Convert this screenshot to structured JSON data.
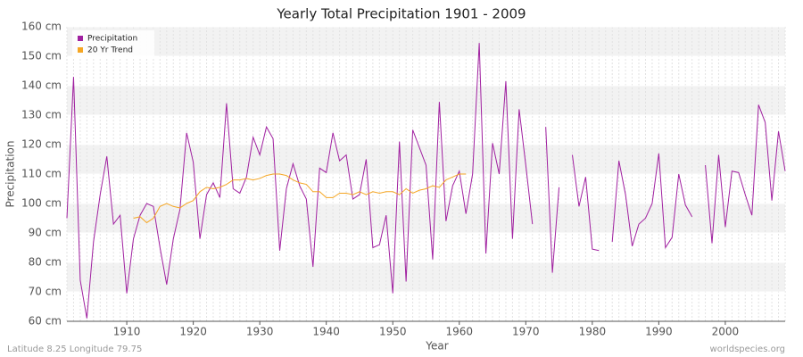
{
  "chart_data": {
    "type": "line",
    "title": "Yearly Total Precipitation 1901 - 2009",
    "x_label": "Year",
    "y_label": "Precipitation",
    "footer_left": "Latitude 8.25 Longitude 79.75",
    "footer_right": "worldspecies.org",
    "x": [
      1901,
      1902,
      1903,
      1904,
      1905,
      1906,
      1907,
      1908,
      1909,
      1910,
      1911,
      1912,
      1913,
      1914,
      1915,
      1916,
      1917,
      1918,
      1919,
      1920,
      1921,
      1922,
      1923,
      1924,
      1925,
      1926,
      1927,
      1928,
      1929,
      1930,
      1931,
      1932,
      1933,
      1934,
      1935,
      1936,
      1937,
      1938,
      1939,
      1940,
      1941,
      1942,
      1943,
      1944,
      1945,
      1946,
      1947,
      1948,
      1949,
      1950,
      1951,
      1952,
      1953,
      1954,
      1955,
      1956,
      1957,
      1958,
      1959,
      1960,
      1961,
      1962,
      1963,
      1964,
      1965,
      1966,
      1967,
      1968,
      1969,
      1970,
      1971,
      1972,
      1973,
      1974,
      1975,
      1976,
      1977,
      1978,
      1979,
      1980,
      1981,
      1982,
      1983,
      1984,
      1985,
      1986,
      1987,
      1988,
      1989,
      1990,
      1991,
      1992,
      1993,
      1994,
      1995,
      1996,
      1997,
      1998,
      1999,
      2000,
      2001,
      2002,
      2003,
      2004,
      2005,
      2006,
      2007,
      2008,
      2009
    ],
    "series": [
      {
        "name": "Precipitation",
        "color": "#a020a0",
        "values": [
          95,
          143,
          74,
          61,
          87,
          103,
          116,
          93,
          96,
          69.5,
          88,
          96,
          100,
          99,
          85,
          72.5,
          88,
          98,
          124,
          114,
          88,
          103,
          107,
          102,
          134,
          105,
          103.5,
          109,
          122.5,
          116.5,
          126,
          122,
          84,
          105,
          113.5,
          106,
          101.5,
          78.5,
          112,
          110.5,
          124,
          114.5,
          116.5,
          101.5,
          103,
          115,
          85,
          86,
          96,
          69.5,
          121,
          73.5,
          125,
          119,
          113,
          81,
          134.5,
          94,
          106,
          111,
          96.5,
          110,
          154.5,
          83,
          120.5,
          110,
          141.5,
          88,
          132,
          113,
          93,
          null,
          126,
          76.5,
          105.5,
          null,
          116.5,
          99,
          109,
          84.5,
          84,
          null,
          87,
          114.5,
          103,
          85.5,
          93,
          95,
          100,
          117,
          85,
          88.5,
          110,
          99.5,
          95.5,
          null,
          113,
          86.5,
          116.5,
          92,
          111,
          110.5,
          103,
          96,
          133.5,
          127.5,
          101,
          124.5,
          111
        ]
      },
      {
        "name": "20 Yr Trend",
        "color": "#f5a623",
        "values": [
          null,
          null,
          null,
          null,
          null,
          null,
          null,
          null,
          null,
          null,
          95,
          95.5,
          93.5,
          95,
          99,
          100,
          99,
          98.5,
          100,
          101,
          104,
          105.5,
          105,
          105.5,
          106.5,
          108,
          108,
          108.5,
          108,
          108.5,
          109.5,
          110,
          110,
          109.5,
          108,
          107,
          106.5,
          104,
          104,
          102,
          102,
          103.5,
          103.5,
          103,
          104,
          103,
          104,
          103.5,
          104,
          104,
          103,
          105,
          103.5,
          104.5,
          105,
          106,
          105.5,
          108,
          109,
          110,
          110,
          null,
          null,
          null,
          null,
          null,
          null,
          null,
          null,
          null,
          null,
          null,
          null,
          null,
          null,
          null,
          null,
          null,
          null,
          null,
          null,
          null,
          null,
          null,
          null,
          null,
          null,
          null,
          null,
          null,
          null,
          null,
          null,
          null,
          null,
          null,
          null,
          null,
          null,
          null,
          null,
          null,
          null,
          null,
          null,
          null,
          null,
          null,
          null
        ]
      }
    ],
    "xlim": [
      1901,
      2009
    ],
    "xticks": [
      1910,
      1920,
      1930,
      1940,
      1950,
      1960,
      1970,
      1980,
      1990,
      2000
    ],
    "ylim": [
      60,
      160
    ],
    "yticks": [
      {
        "value": 60,
        "label": "60 cm"
      },
      {
        "value": 70,
        "label": "70 cm"
      },
      {
        "value": 80,
        "label": "80 cm"
      },
      {
        "value": 90,
        "label": "90 cm"
      },
      {
        "value": 100,
        "label": "100 cm"
      },
      {
        "value": 110,
        "label": "110 cm"
      },
      {
        "value": 120,
        "label": "120 cm"
      },
      {
        "value": 130,
        "label": "130 cm"
      },
      {
        "value": 140,
        "label": "140 cm"
      },
      {
        "value": 150,
        "label": "150 cm"
      },
      {
        "value": 160,
        "label": "160 cm"
      }
    ],
    "grid": true,
    "legend": "top-left"
  }
}
